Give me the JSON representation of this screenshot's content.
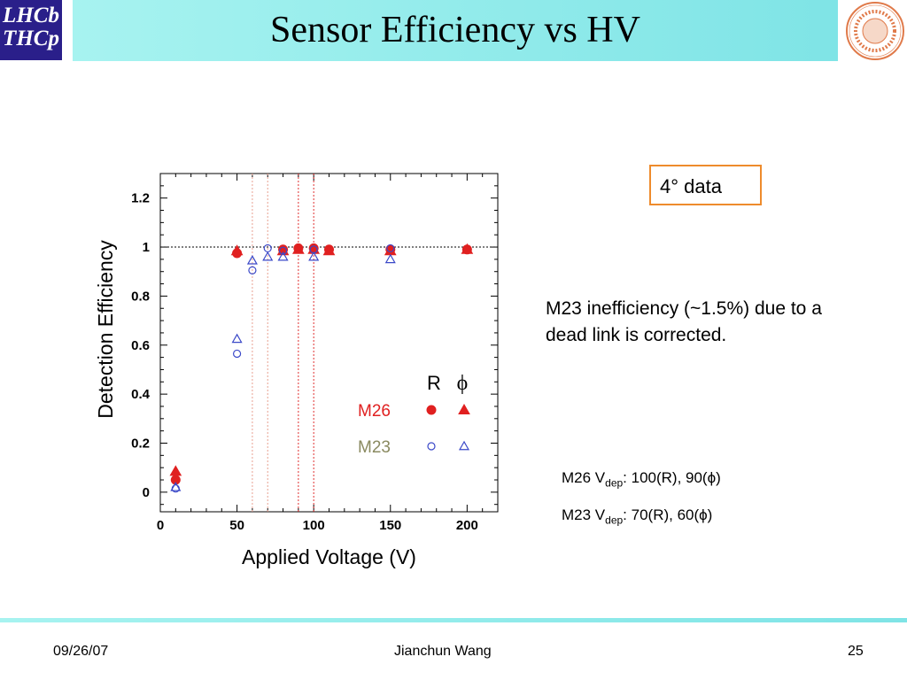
{
  "header": {
    "title": "Sensor Efficiency vs HV",
    "logo_left_line1": "LHCb",
    "logo_left_line2": "THCp",
    "logo_right_text": "SYRACUSE UNIVERSITY FOUNDED AD 1870"
  },
  "box_label": "4° data",
  "note": "M23 inefficiency (~1.5%) due to a dead link is corrected.",
  "vdep": {
    "m26_prefix": "M26 V",
    "m26_sub": "dep",
    "m26_suffix": ":  100(R), 90(ϕ)",
    "m23_prefix": "M23 V",
    "m23_sub": "dep",
    "m23_suffix": ": 70(R), 60(ϕ)"
  },
  "footer": {
    "date": "09/26/07",
    "author": "Jianchun Wang",
    "page": "25"
  },
  "chart_data": {
    "type": "scatter",
    "xlabel": "Applied Voltage (V)",
    "ylabel": "Detection Efficiency",
    "xlim": [
      0,
      220
    ],
    "ylim": [
      -0.08,
      1.3
    ],
    "xticks": [
      0,
      50,
      100,
      150,
      200
    ],
    "xtick_labels": [
      "0",
      "50",
      "100",
      "150",
      "200"
    ],
    "yticks": [
      0,
      0.2,
      0.4,
      0.6,
      0.8,
      1,
      1.2
    ],
    "ytick_labels": [
      "0",
      "0.2",
      "0.4",
      "0.6",
      "0.8",
      "1",
      "1.2"
    ],
    "reference_line_y": 1,
    "vlines": [
      {
        "x": 60,
        "color": "#e8a090"
      },
      {
        "x": 70,
        "color": "#e8a090"
      },
      {
        "x": 90,
        "color": "#e03030"
      },
      {
        "x": 100,
        "color": "#e03030"
      }
    ],
    "legend": {
      "col_r": "R",
      "col_phi": "ϕ",
      "rows": [
        {
          "label": "M26",
          "color": "#e02020"
        },
        {
          "label": "M23",
          "color": "#8a8a60"
        }
      ]
    },
    "series": [
      {
        "name": "M26 R",
        "marker": "circle-filled",
        "color": "#e02020",
        "x": [
          10,
          50,
          80,
          90,
          100,
          110,
          150,
          200
        ],
        "y": [
          0.05,
          0.975,
          0.99,
          0.995,
          0.995,
          0.99,
          0.99,
          0.99
        ]
      },
      {
        "name": "M26 ϕ",
        "marker": "triangle-filled",
        "color": "#e02020",
        "x": [
          10,
          50,
          80,
          90,
          100,
          110,
          150,
          200
        ],
        "y": [
          0.085,
          0.985,
          0.985,
          0.99,
          0.99,
          0.985,
          0.985,
          0.99
        ]
      },
      {
        "name": "M23 R",
        "marker": "circle-open",
        "color": "#3a48c8",
        "x": [
          10,
          50,
          60,
          70,
          80,
          100,
          150
        ],
        "y": [
          0.015,
          0.565,
          0.905,
          0.995,
          0.985,
          0.99,
          0.995
        ]
      },
      {
        "name": "M23 ϕ",
        "marker": "triangle-open",
        "color": "#3a48c8",
        "x": [
          10,
          50,
          60,
          70,
          80,
          100,
          150
        ],
        "y": [
          0.02,
          0.625,
          0.945,
          0.96,
          0.96,
          0.96,
          0.95
        ]
      }
    ]
  }
}
